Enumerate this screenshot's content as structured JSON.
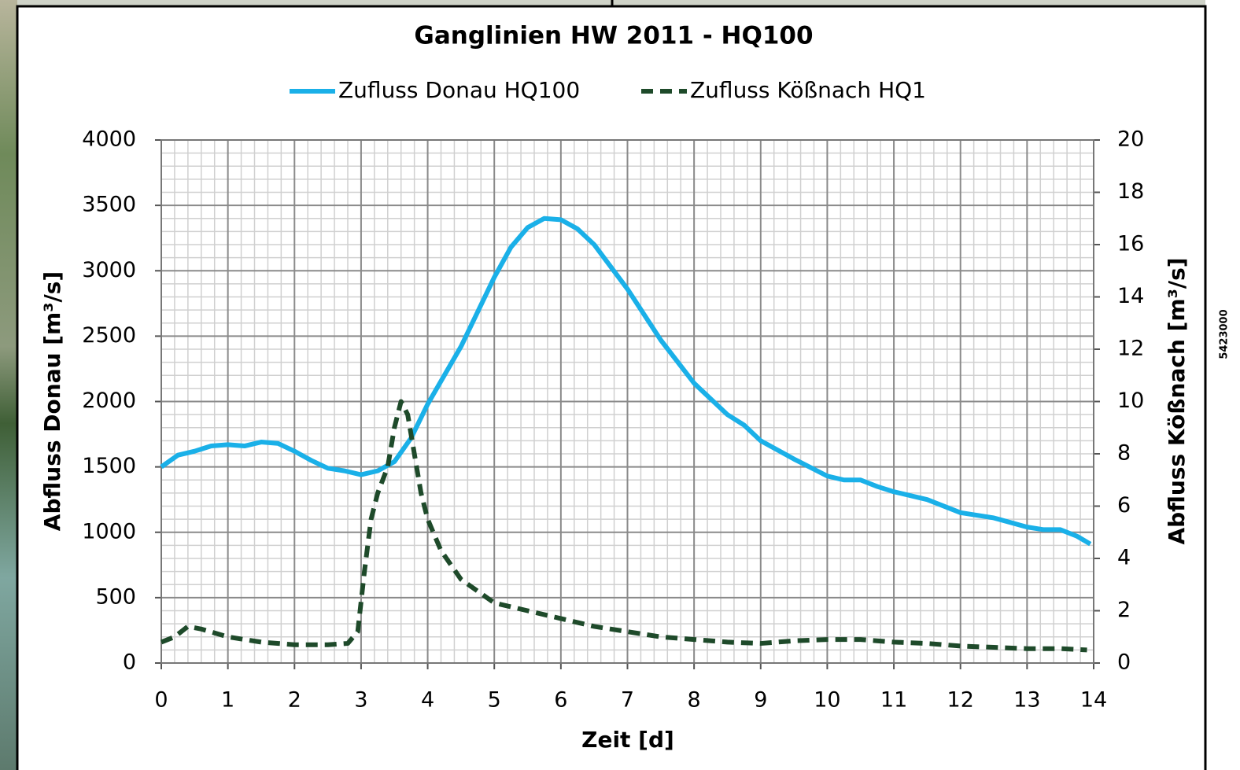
{
  "chart_data": {
    "type": "line",
    "title": "Ganglinien HW 2011 - HQ100",
    "x_label": "Zeit [d]",
    "y_label": "Abfluss Donau [m³/s]",
    "y2_label": "Abfluss Kößnach [m³/s]",
    "xlim": [
      0,
      14
    ],
    "xticks": [
      0,
      1,
      2,
      3,
      4,
      5,
      6,
      7,
      8,
      9,
      10,
      11,
      12,
      13,
      14
    ],
    "ylim": [
      0,
      4000
    ],
    "yticks": [
      0,
      500,
      1000,
      1500,
      2000,
      2500,
      3000,
      3500,
      4000
    ],
    "y2lim": [
      0,
      20
    ],
    "y2ticks": [
      0,
      2,
      4,
      6,
      8,
      10,
      12,
      14,
      16,
      18,
      20
    ],
    "grid": true,
    "minor_grid": true,
    "legend": "top",
    "series": [
      {
        "name": "Zufluss Donau HQ100",
        "color": "#1ab0e8",
        "dash": false,
        "x": [
          0,
          0.25,
          0.5,
          0.75,
          1,
          1.25,
          1.5,
          1.75,
          2,
          2.25,
          2.5,
          2.75,
          3,
          3.25,
          3.5,
          3.75,
          4,
          4.5,
          5,
          5.25,
          5.5,
          5.75,
          6,
          6.25,
          6.5,
          7,
          7.5,
          8,
          8.5,
          8.75,
          9,
          9.5,
          10,
          10.25,
          10.5,
          10.75,
          11,
          11.5,
          12,
          12.5,
          13,
          13.25,
          13.5,
          13.75,
          13.95
        ],
        "values": [
          1500,
          1590,
          1620,
          1660,
          1670,
          1660,
          1690,
          1680,
          1620,
          1550,
          1490,
          1470,
          1440,
          1470,
          1540,
          1720,
          1980,
          2420,
          2950,
          3180,
          3330,
          3400,
          3390,
          3320,
          3200,
          2860,
          2470,
          2140,
          1900,
          1820,
          1700,
          1560,
          1430,
          1400,
          1400,
          1350,
          1310,
          1250,
          1150,
          1110,
          1040,
          1020,
          1020,
          970,
          910
        ]
      },
      {
        "name": "Zufluss Kößnach HQ1",
        "color": "#1e4a2a",
        "dash": true,
        "axis": "y2",
        "x": [
          0,
          0.2,
          0.4,
          0.6,
          1,
          1.5,
          2,
          2.5,
          2.8,
          2.95,
          3.05,
          3.15,
          3.25,
          3.4,
          3.5,
          3.6,
          3.7,
          3.8,
          3.9,
          4,
          4.2,
          4.5,
          5,
          5.5,
          6,
          6.5,
          7,
          7.5,
          8,
          8.5,
          9,
          9.5,
          10,
          10.5,
          11,
          11.5,
          12,
          12.5,
          13,
          13.5,
          13.9
        ],
        "values": [
          0.8,
          1.0,
          1.4,
          1.3,
          1.0,
          0.8,
          0.7,
          0.7,
          0.75,
          1.2,
          3.5,
          5.5,
          6.5,
          7.5,
          9.0,
          10.0,
          9.5,
          8.0,
          6.5,
          5.5,
          4.3,
          3.2,
          2.3,
          2.0,
          1.7,
          1.4,
          1.2,
          1.0,
          0.9,
          0.8,
          0.75,
          0.85,
          0.9,
          0.9,
          0.8,
          0.75,
          0.65,
          0.6,
          0.55,
          0.55,
          0.5
        ]
      }
    ]
  },
  "map_label": "5423000"
}
